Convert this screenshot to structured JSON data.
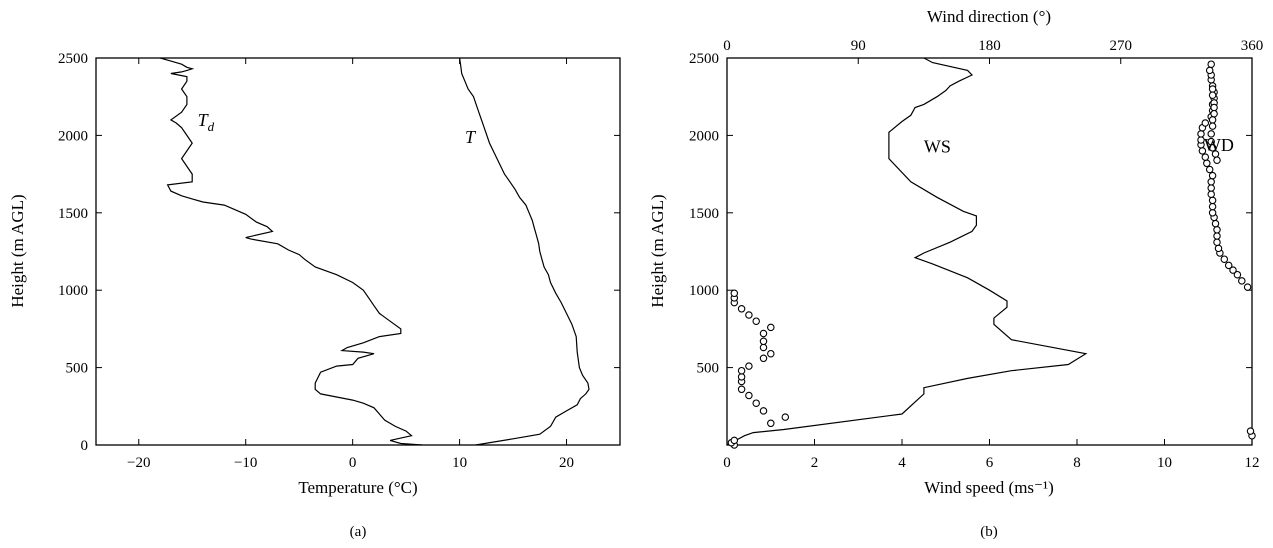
{
  "chart_data": [
    {
      "type": "line",
      "panel_label": "(a)",
      "xlabel": "Temperature (°C)",
      "ylabel": "Height (m AGL)",
      "xlim": [
        -24,
        25
      ],
      "ylim": [
        0,
        2500
      ],
      "xticks": [
        -20,
        -10,
        0,
        10,
        20
      ],
      "xtick_labels": [
        "−20",
        "−10",
        "0",
        "10",
        "20"
      ],
      "yticks": [
        0,
        500,
        1000,
        1500,
        2000,
        2500
      ],
      "ytick_labels": [
        "0",
        "500",
        "1000",
        "1500",
        "2000",
        "2500"
      ],
      "grid": false,
      "series": [
        {
          "name": "T",
          "label_position": [
            10.5,
            1950
          ],
          "x": [
            11.5,
            15,
            17.5,
            18.5,
            19,
            20,
            21,
            21.3,
            21.8,
            22.1,
            22,
            21.5,
            21.2,
            21,
            20.9,
            20.5,
            20,
            19.5,
            19,
            18.5,
            18.3,
            17.9,
            17.7,
            17.5,
            17.4,
            17.2,
            17,
            16.8,
            16.5,
            16.2,
            15.6,
            15.2,
            14.7,
            14.2,
            13.5,
            12.8,
            12.3,
            11.8,
            11.3,
            10.8,
            10.5,
            10.2,
            10.1,
            10
          ],
          "y": [
            0,
            40,
            70,
            120,
            180,
            220,
            260,
            300,
            330,
            360,
            400,
            450,
            500,
            600,
            700,
            780,
            850,
            920,
            980,
            1050,
            1100,
            1150,
            1200,
            1250,
            1300,
            1350,
            1400,
            1450,
            1500,
            1550,
            1600,
            1650,
            1700,
            1750,
            1850,
            1950,
            2050,
            2150,
            2250,
            2300,
            2350,
            2400,
            2450,
            2500
          ]
        },
        {
          "name": "T_d",
          "label_position": [
            -14.5,
            2060
          ],
          "x": [
            6.5,
            4.5,
            3.5,
            5.5,
            5,
            4,
            3,
            2.5,
            2,
            1,
            0,
            -1.5,
            -3,
            -3.5,
            -3.5,
            -3,
            -1.5,
            0,
            0.5,
            2,
            1,
            -1,
            -0.5,
            1,
            2.5,
            4.5,
            4.5,
            3.5,
            2.5,
            2,
            1.5,
            1,
            0,
            -1.5,
            -3.5,
            -4.5,
            -5,
            -6,
            -7,
            -9.5,
            -10,
            -7.5,
            -8,
            -9,
            -10,
            -12,
            -14,
            -15,
            -16,
            -17,
            -17.3,
            -15,
            -15,
            -15.5,
            -16,
            -15.5,
            -15,
            -15.5,
            -16,
            -16.5,
            -17,
            -16,
            -15.5,
            -15.5,
            -16,
            -15.5,
            -15.5,
            -17,
            -16,
            -15.5,
            -15,
            -15.5,
            -16,
            -17,
            -18
          ],
          "y": [
            0,
            10,
            30,
            60,
            90,
            120,
            160,
            200,
            240,
            270,
            290,
            310,
            330,
            360,
            400,
            470,
            510,
            520,
            560,
            590,
            600,
            610,
            630,
            660,
            700,
            720,
            750,
            800,
            850,
            900,
            950,
            1000,
            1050,
            1100,
            1150,
            1200,
            1230,
            1260,
            1300,
            1330,
            1340,
            1380,
            1410,
            1440,
            1490,
            1550,
            1570,
            1590,
            1610,
            1640,
            1680,
            1700,
            1750,
            1800,
            1850,
            1900,
            1950,
            2000,
            2050,
            2080,
            2100,
            2150,
            2200,
            2250,
            2300,
            2350,
            2380,
            2400,
            2410,
            2420,
            2430,
            2440,
            2460,
            2480,
            2500
          ]
        }
      ],
      "annotations": [
        {
          "text": "T",
          "x": 10.5,
          "y": 1950
        },
        {
          "text": "T",
          "sub": "d",
          "x": -14.5,
          "y": 2060
        }
      ]
    },
    {
      "type": "line",
      "panel_label": "(b)",
      "xlabel": "Wind speed (ms⁻¹)",
      "x2label": "Wind direction (°)",
      "ylabel": "Height (m AGL)",
      "xlim": [
        0,
        12
      ],
      "x2lim": [
        0,
        360
      ],
      "ylim": [
        0,
        2500
      ],
      "xticks": [
        0,
        2,
        4,
        6,
        8,
        10,
        12
      ],
      "xtick_labels": [
        "0",
        "2",
        "4",
        "6",
        "8",
        "10",
        "12"
      ],
      "x2ticks": [
        0,
        90,
        180,
        270,
        360
      ],
      "x2tick_labels": [
        "0",
        "90",
        "180",
        "270",
        "360"
      ],
      "yticks": [
        500,
        1000,
        1500,
        2000,
        2500
      ],
      "ytick_labels": [
        "500",
        "1000",
        "1500",
        "2000",
        "2500"
      ],
      "grid": false,
      "series": [
        {
          "name": "WS",
          "axis": "bottom",
          "style": "line",
          "x": [
            0,
            0.2,
            0.4,
            0.6,
            1.3,
            4,
            4.5,
            4.5,
            5.5,
            6.5,
            7.8,
            8.2,
            6.5,
            6.1,
            6.1,
            6.4,
            6.4,
            6,
            5.5,
            4.7,
            4.3,
            4.5,
            5.1,
            5.6,
            5.7,
            5.7,
            5.4,
            4.8,
            4.2,
            3.7,
            3.7,
            3.7,
            4.0,
            4.2,
            4.3,
            4.5,
            4.8,
            5.0,
            5.1,
            5.3,
            5.6,
            5.5,
            4.7,
            4.5
          ],
          "y": [
            0,
            30,
            60,
            80,
            100,
            200,
            330,
            370,
            430,
            480,
            520,
            590,
            680,
            780,
            820,
            890,
            930,
            1000,
            1080,
            1170,
            1210,
            1240,
            1310,
            1380,
            1420,
            1480,
            1510,
            1600,
            1700,
            1850,
            1950,
            2020,
            2090,
            2130,
            2180,
            2200,
            2250,
            2290,
            2320,
            2350,
            2390,
            2420,
            2470,
            2500
          ]
        },
        {
          "name": "WD",
          "axis": "top",
          "style": "markers",
          "x": [
            5,
            3,
            5,
            30,
            40,
            25,
            20,
            15,
            10,
            10,
            10,
            10,
            15,
            25,
            30,
            25,
            25,
            25,
            30,
            20,
            15,
            10,
            5,
            5,
            5,
            360,
            359,
            357,
            353,
            350,
            347,
            344,
            341,
            338,
            337,
            336,
            336,
            336,
            335,
            334,
            333,
            333,
            333,
            332,
            332,
            332,
            333,
            331,
            329,
            328,
            326,
            325,
            325,
            325,
            326,
            328,
            332,
            333,
            333,
            334,
            334,
            333,
            332,
            332,
            331,
            332,
            333,
            333,
            334,
            334,
            334,
            333,
            333,
            332,
            332,
            333,
            335,
            336
          ],
          "y": [
            0,
            15,
            30,
            140,
            180,
            220,
            270,
            320,
            360,
            410,
            440,
            480,
            510,
            560,
            590,
            630,
            670,
            720,
            760,
            800,
            840,
            880,
            920,
            950,
            980,
            60,
            90,
            1020,
            1060,
            1100,
            1130,
            1160,
            1200,
            1240,
            1270,
            1310,
            1350,
            1390,
            1430,
            1470,
            1500,
            1540,
            1580,
            1620,
            1660,
            1700,
            1740,
            1780,
            1820,
            1860,
            1900,
            1940,
            1970,
            2010,
            2050,
            2080,
            2120,
            2160,
            2200,
            2240,
            2280,
            2320,
            2360,
            2390,
            2420,
            2460,
            2300,
            2260,
            2210,
            2180,
            2140,
            2100,
            2060,
            2010,
            1960,
            1920,
            1880,
            1840
          ]
        }
      ],
      "annotations": [
        {
          "text": "WS",
          "x": 4.5,
          "y": 1890
        },
        {
          "text": "WD",
          "x": 10.9,
          "y": 1900
        }
      ]
    }
  ]
}
